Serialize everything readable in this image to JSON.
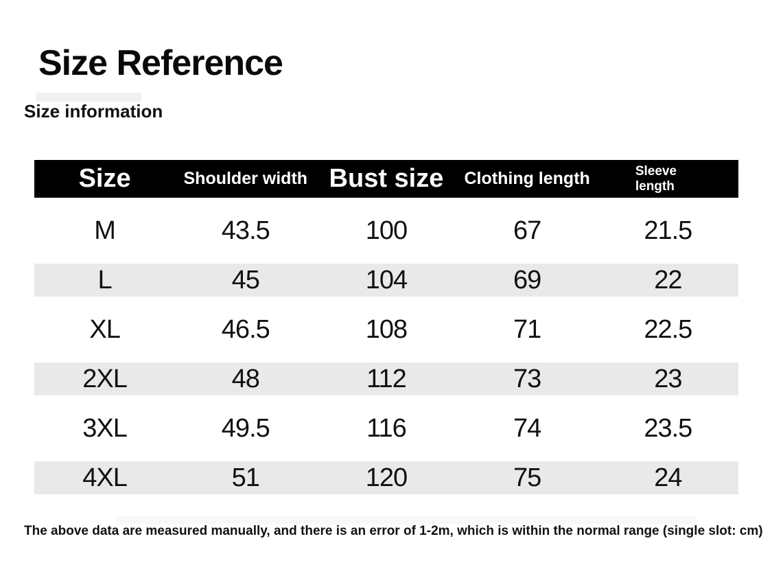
{
  "page": {
    "title": "Size Reference",
    "subtitle": "Size information",
    "footnote": "The above data are measured manually, and there is an error of 1-2m, which is within the normal range (single slot: cm)"
  },
  "chart_data": {
    "type": "table",
    "title": "Size Reference",
    "columns": [
      "Size",
      "Shoulder width",
      "Bust size",
      "Clothing length",
      "Sleeve length"
    ],
    "rows": [
      [
        "M",
        "43.5",
        "100",
        "67",
        "21.5"
      ],
      [
        "L",
        "45",
        "104",
        "69",
        "22"
      ],
      [
        "XL",
        "46.5",
        "108",
        "71",
        "22.5"
      ],
      [
        "2XL",
        "48",
        "112",
        "73",
        "23"
      ],
      [
        "3XL",
        "49.5",
        "116",
        "74",
        "23.5"
      ],
      [
        "4XL",
        "51",
        "120",
        "75",
        "24"
      ]
    ],
    "layout": {
      "striped_rows": [
        "L",
        "2XL",
        "4XL"
      ],
      "header_style": "black-bar-white-text"
    }
  },
  "colors": {
    "header_bg": "#000000",
    "header_text": "#ffffff",
    "stripe": "#e9e9e9",
    "text": "#111111",
    "background": "#ffffff"
  }
}
